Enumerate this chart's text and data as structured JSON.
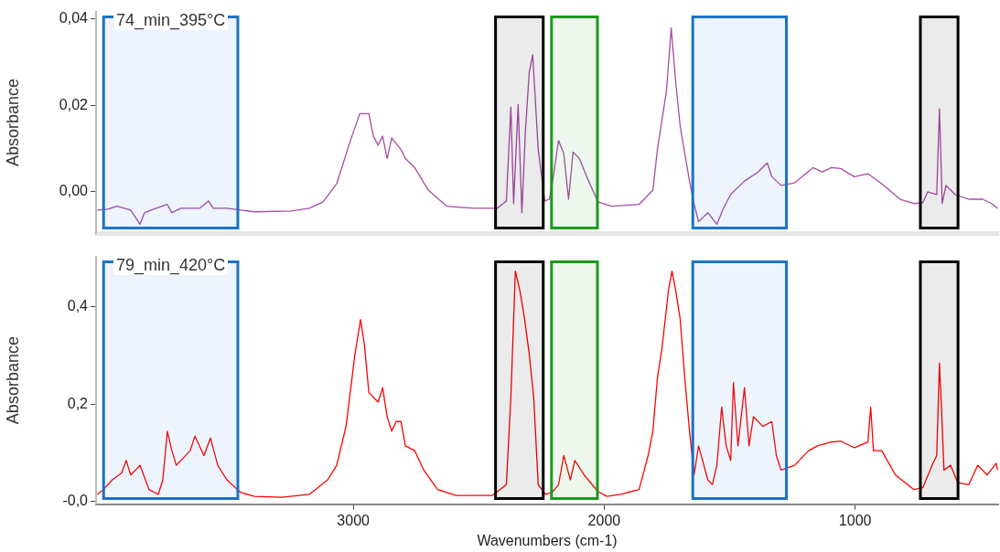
{
  "chart_data": [
    {
      "type": "line",
      "title": "74_min_395°C",
      "ylabel": "Absorbance",
      "marker": "none",
      "line_style": "solid",
      "grid": false,
      "tick_labels": "y",
      "xlim": [
        4025,
        430
      ],
      "xticks": [
        3000,
        2000,
        1000
      ],
      "ylim": [
        -0.0096,
        0.0417
      ],
      "yticks": [
        {
          "value": 0.04,
          "label": "0,04"
        },
        {
          "value": 0.02,
          "label": "0,02"
        },
        {
          "value": 0,
          "label": "0,00"
        }
      ],
      "bands": [
        {
          "axis": "x",
          "from": 3995,
          "to": 3460,
          "color": "#1a73c6"
        },
        {
          "axis": "x",
          "from": 2433,
          "to": 2243,
          "color": "#000000"
        },
        {
          "axis": "x",
          "from": 2210,
          "to": 2027,
          "color": "#1a9a1a"
        },
        {
          "axis": "x",
          "from": 1647,
          "to": 1274,
          "color": "#1a73c6"
        },
        {
          "axis": "x",
          "from": 740,
          "to": 590,
          "color": "#000000"
        }
      ],
      "series": [
        {
          "color": "#a64ca6",
          "x": [
            4020,
            3978,
            3942,
            3887,
            3850,
            3832,
            3796,
            3741,
            3723,
            3686,
            3613,
            3577,
            3558,
            3504,
            3449,
            3394,
            3248,
            3175,
            3120,
            3066,
            3011,
            2974,
            2938,
            2920,
            2901,
            2883,
            2865,
            2847,
            2810,
            2792,
            2755,
            2701,
            2628,
            2518,
            2427,
            2390,
            2372,
            2361,
            2343,
            2328,
            2314,
            2299,
            2285,
            2263,
            2237,
            2219,
            2208,
            2182,
            2161,
            2142,
            2124,
            2099,
            2062,
            2025,
            1971,
            1861,
            1806,
            1788,
            1752,
            1733,
            1715,
            1697,
            1660,
            1642,
            1624,
            1587,
            1551,
            1525,
            1496,
            1441,
            1387,
            1350,
            1332,
            1295,
            1241,
            1168,
            1131,
            1095,
            1058,
            1003,
            949,
            894,
            821,
            766,
            730,
            711,
            675,
            664,
            653,
            638,
            602,
            547,
            492,
            456,
            432
          ],
          "values": [
            -0.0042,
            -0.004,
            -0.0033,
            -0.0042,
            -0.0075,
            -0.0048,
            -0.004,
            -0.0029,
            -0.0048,
            -0.0038,
            -0.0038,
            -0.0021,
            -0.0038,
            -0.0038,
            -0.0042,
            -0.0046,
            -0.0044,
            -0.0038,
            -0.0023,
            0.0019,
            0.0119,
            0.0181,
            0.0181,
            0.0129,
            0.0108,
            0.0129,
            0.0077,
            0.0125,
            0.0098,
            0.0077,
            0.0056,
            0.0004,
            -0.0033,
            -0.0038,
            -0.0038,
            -0.0021,
            0.0196,
            -0.0027,
            0.0202,
            -0.0048,
            0.014,
            0.0275,
            0.0317,
            0.0098,
            -0.0021,
            -0.0017,
            0.0015,
            0.0119,
            0.0088,
            -0.0017,
            0.0092,
            0.0077,
            0.0025,
            -0.0023,
            -0.0033,
            -0.0029,
            0.0004,
            0.0098,
            0.0233,
            0.0379,
            0.0254,
            0.015,
            0.0025,
            -0.0027,
            -0.0069,
            -0.0048,
            -0.0075,
            -0.0038,
            -0.0006,
            0.0025,
            0.0046,
            0.0067,
            0.0035,
            0.0015,
            0.0021,
            0.0056,
            0.0046,
            0.0056,
            0.0054,
            0.0035,
            0.0042,
            0.0019,
            -0.0017,
            -0.0027,
            -0.0025,
            0,
            -0.0006,
            0.0192,
            -0.0027,
            0.0015,
            -0.0006,
            -0.0017,
            -0.0017,
            -0.0027,
            -0.0038
          ]
        }
      ]
    },
    {
      "type": "line",
      "title": "79_min_420°C",
      "ylabel": "Absorbance",
      "xlabel": "Wavenumbers (cm-1)",
      "marker": "none",
      "line_style": "solid",
      "grid": false,
      "xlim": [
        4025,
        430
      ],
      "xticks": [
        3000,
        2000,
        1000
      ],
      "ylim": [
        -0.006,
        0.504
      ],
      "yticks": [
        {
          "value": 0.4,
          "label": "0,4"
        },
        {
          "value": 0.2,
          "label": "0,2"
        },
        {
          "value": 0,
          "label": "-0,0"
        }
      ],
      "bands": [
        {
          "axis": "x",
          "from": 3995,
          "to": 3460,
          "color": "#1a73c6"
        },
        {
          "axis": "x",
          "from": 2433,
          "to": 2243,
          "color": "#000000"
        },
        {
          "axis": "x",
          "from": 2210,
          "to": 2027,
          "color": "#1a9a1a"
        },
        {
          "axis": "x",
          "from": 1647,
          "to": 1274,
          "color": "#1a73c6"
        },
        {
          "axis": "x",
          "from": 740,
          "to": 590,
          "color": "#000000"
        }
      ],
      "series": [
        {
          "color": "#ff0000",
          "x": [
            4020,
            3996,
            3960,
            3923,
            3905,
            3887,
            3850,
            3814,
            3777,
            3759,
            3741,
            3723,
            3705,
            3650,
            3631,
            3595,
            3569,
            3540,
            3504,
            3449,
            3394,
            3285,
            3175,
            3102,
            3066,
            3029,
            2993,
            2971,
            2956,
            2938,
            2901,
            2883,
            2865,
            2847,
            2829,
            2810,
            2792,
            2755,
            2719,
            2664,
            2591,
            2445,
            2390,
            2372,
            2354,
            2336,
            2317,
            2299,
            2281,
            2263,
            2234,
            2208,
            2182,
            2161,
            2135,
            2117,
            2080,
            2025,
            1989,
            1934,
            1861,
            1825,
            1806,
            1788,
            1770,
            1744,
            1730,
            1715,
            1697,
            1679,
            1660,
            1642,
            1624,
            1587,
            1569,
            1551,
            1532,
            1514,
            1496,
            1485,
            1467,
            1441,
            1423,
            1405,
            1368,
            1332,
            1314,
            1295,
            1241,
            1186,
            1150,
            1095,
            1058,
            1003,
            949,
            938,
            927,
            894,
            839,
            766,
            730,
            693,
            675,
            664,
            656,
            646,
            620,
            591,
            547,
            511,
            474,
            438,
            432
          ],
          "values": [
            0.014,
            0.024,
            0.044,
            0.058,
            0.084,
            0.054,
            0.074,
            0.024,
            0.014,
            0.044,
            0.144,
            0.104,
            0.074,
            0.104,
            0.134,
            0.094,
            0.13,
            0.074,
            0.044,
            0.018,
            0.01,
            0.008,
            0.014,
            0.044,
            0.074,
            0.154,
            0.304,
            0.374,
            0.324,
            0.224,
            0.204,
            0.234,
            0.174,
            0.144,
            0.164,
            0.164,
            0.114,
            0.104,
            0.064,
            0.024,
            0.012,
            0.012,
            0.034,
            0.214,
            0.474,
            0.434,
            0.374,
            0.304,
            0.214,
            0.034,
            0.014,
            0.018,
            0.034,
            0.094,
            0.044,
            0.084,
            0.054,
            0.02,
            0.01,
            0.014,
            0.024,
            0.094,
            0.144,
            0.254,
            0.314,
            0.434,
            0.474,
            0.434,
            0.374,
            0.254,
            0.144,
            0.054,
            0.114,
            0.044,
            0.034,
            0.074,
            0.194,
            0.114,
            0.084,
            0.244,
            0.114,
            0.234,
            0.114,
            0.174,
            0.154,
            0.164,
            0.094,
            0.064,
            0.074,
            0.104,
            0.114,
            0.122,
            0.124,
            0.11,
            0.122,
            0.194,
            0.104,
            0.104,
            0.054,
            0.024,
            0.028,
            0.074,
            0.094,
            0.284,
            0.194,
            0.064,
            0.074,
            0.038,
            0.034,
            0.074,
            0.054,
            0.078,
            0.064
          ]
        }
      ]
    }
  ]
}
